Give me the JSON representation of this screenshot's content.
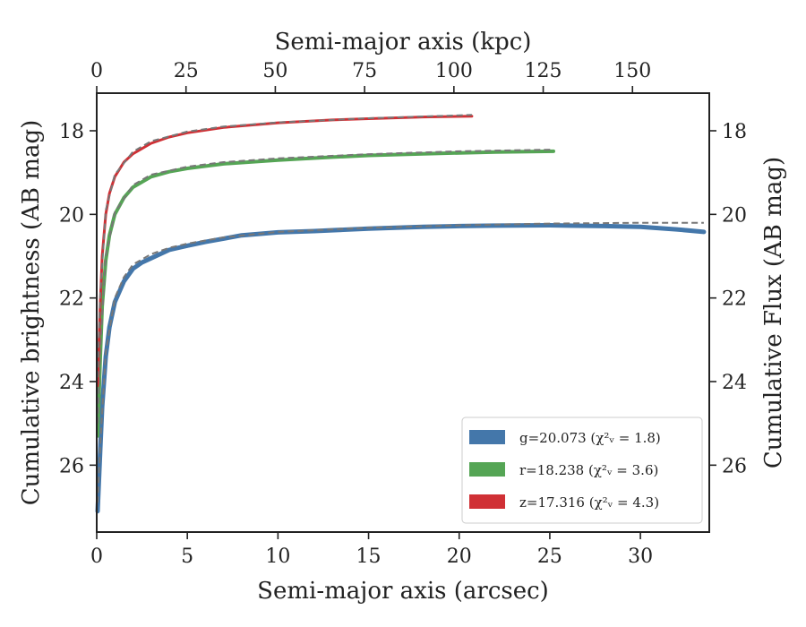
{
  "chart_data": {
    "type": "line",
    "xlabel": "Semi-major axis (arcsec)",
    "xlabel_top": "Semi-major axis (kpc)",
    "ylabel": "Cumulative brightness (AB mag)",
    "ylabel_right": "Cumulative Flux (AB mag)",
    "xlim": [
      0,
      33.8
    ],
    "xlim_top": [
      0,
      171.5
    ],
    "ylim": [
      27.6,
      17.1
    ],
    "y_inverted": true,
    "x_ticks": [
      0,
      5,
      10,
      15,
      20,
      25,
      30
    ],
    "x_tick_labels": [
      "0",
      "5",
      "10",
      "15",
      "20",
      "25",
      "30"
    ],
    "x_top_ticks": [
      0,
      25,
      50,
      75,
      100,
      125,
      150
    ],
    "x_top_tick_labels": [
      "0",
      "25",
      "50",
      "75",
      "100",
      "125",
      "150"
    ],
    "y_ticks": [
      18,
      20,
      22,
      24,
      26
    ],
    "y_tick_labels": [
      "18",
      "20",
      "22",
      "24",
      "26"
    ],
    "legend_position": "lower-right",
    "series": [
      {
        "name": "g=20.073 (χ²ᵥ = 1.8)",
        "color": "#4477aa",
        "x": [
          0.05,
          0.1,
          0.2,
          0.3,
          0.5,
          0.7,
          1.0,
          1.5,
          2.0,
          2.5,
          3.0,
          4.0,
          5.0,
          6.0,
          7.0,
          8.0,
          10.0,
          12.0,
          15.0,
          18.0,
          20.0,
          22.0,
          25.0,
          28.0,
          30.0,
          32.0,
          33.5
        ],
        "y": [
          27.1,
          26.6,
          25.6,
          24.6,
          23.4,
          22.7,
          22.1,
          21.6,
          21.3,
          21.15,
          21.05,
          20.85,
          20.75,
          20.66,
          20.58,
          20.5,
          20.43,
          20.4,
          20.34,
          20.3,
          20.28,
          20.27,
          20.26,
          20.28,
          20.3,
          20.36,
          20.42
        ],
        "model_x": [
          0.05,
          0.2,
          0.5,
          1.0,
          1.5,
          2.0,
          3.0,
          4.0,
          5.0,
          7.0,
          10.0,
          15.0,
          20.0,
          25.0,
          30.0,
          33.5
        ],
        "model_y": [
          26.9,
          25.5,
          23.3,
          22.0,
          21.5,
          21.2,
          20.95,
          20.8,
          20.7,
          20.55,
          20.42,
          20.32,
          20.26,
          20.22,
          20.2,
          20.2
        ]
      },
      {
        "name": "r=18.238 (χ²ᵥ = 3.6)",
        "color": "#55a555",
        "x": [
          0.05,
          0.1,
          0.2,
          0.3,
          0.5,
          0.7,
          1.0,
          1.5,
          2.0,
          3.0,
          4.0,
          5.0,
          7.0,
          10.0,
          13.0,
          15.0,
          18.0,
          20.0,
          22.0,
          25.2
        ],
        "y": [
          25.3,
          24.7,
          23.4,
          22.2,
          21.1,
          20.5,
          20.0,
          19.6,
          19.35,
          19.1,
          18.98,
          18.9,
          18.79,
          18.7,
          18.63,
          18.59,
          18.55,
          18.53,
          18.51,
          18.49
        ],
        "model_x": [
          0.05,
          0.2,
          0.5,
          1.0,
          2.0,
          3.0,
          5.0,
          7.0,
          10.0,
          15.0,
          20.0,
          25.2
        ],
        "model_y": [
          25.0,
          23.2,
          21.0,
          19.95,
          19.3,
          19.05,
          18.86,
          18.75,
          18.66,
          18.56,
          18.49,
          18.45
        ]
      },
      {
        "name": "z=17.316 (χ²ᵥ = 4.3)",
        "color": "#d03035",
        "x": [
          0.05,
          0.1,
          0.2,
          0.3,
          0.5,
          0.7,
          1.0,
          1.5,
          2.0,
          3.0,
          4.0,
          5.0,
          7.0,
          10.0,
          13.0,
          15.0,
          18.0,
          20.7
        ],
        "y": [
          24.1,
          23.4,
          22.1,
          21.0,
          20.0,
          19.5,
          19.1,
          18.75,
          18.55,
          18.3,
          18.15,
          18.05,
          17.92,
          17.81,
          17.74,
          17.71,
          17.67,
          17.65
        ],
        "model_x": [
          0.05,
          0.2,
          0.5,
          1.0,
          2.0,
          3.0,
          5.0,
          7.0,
          10.0,
          15.0,
          20.7
        ],
        "model_y": [
          23.9,
          21.9,
          19.9,
          19.05,
          18.5,
          18.25,
          18.02,
          17.9,
          17.8,
          17.7,
          17.62
        ]
      }
    ]
  }
}
